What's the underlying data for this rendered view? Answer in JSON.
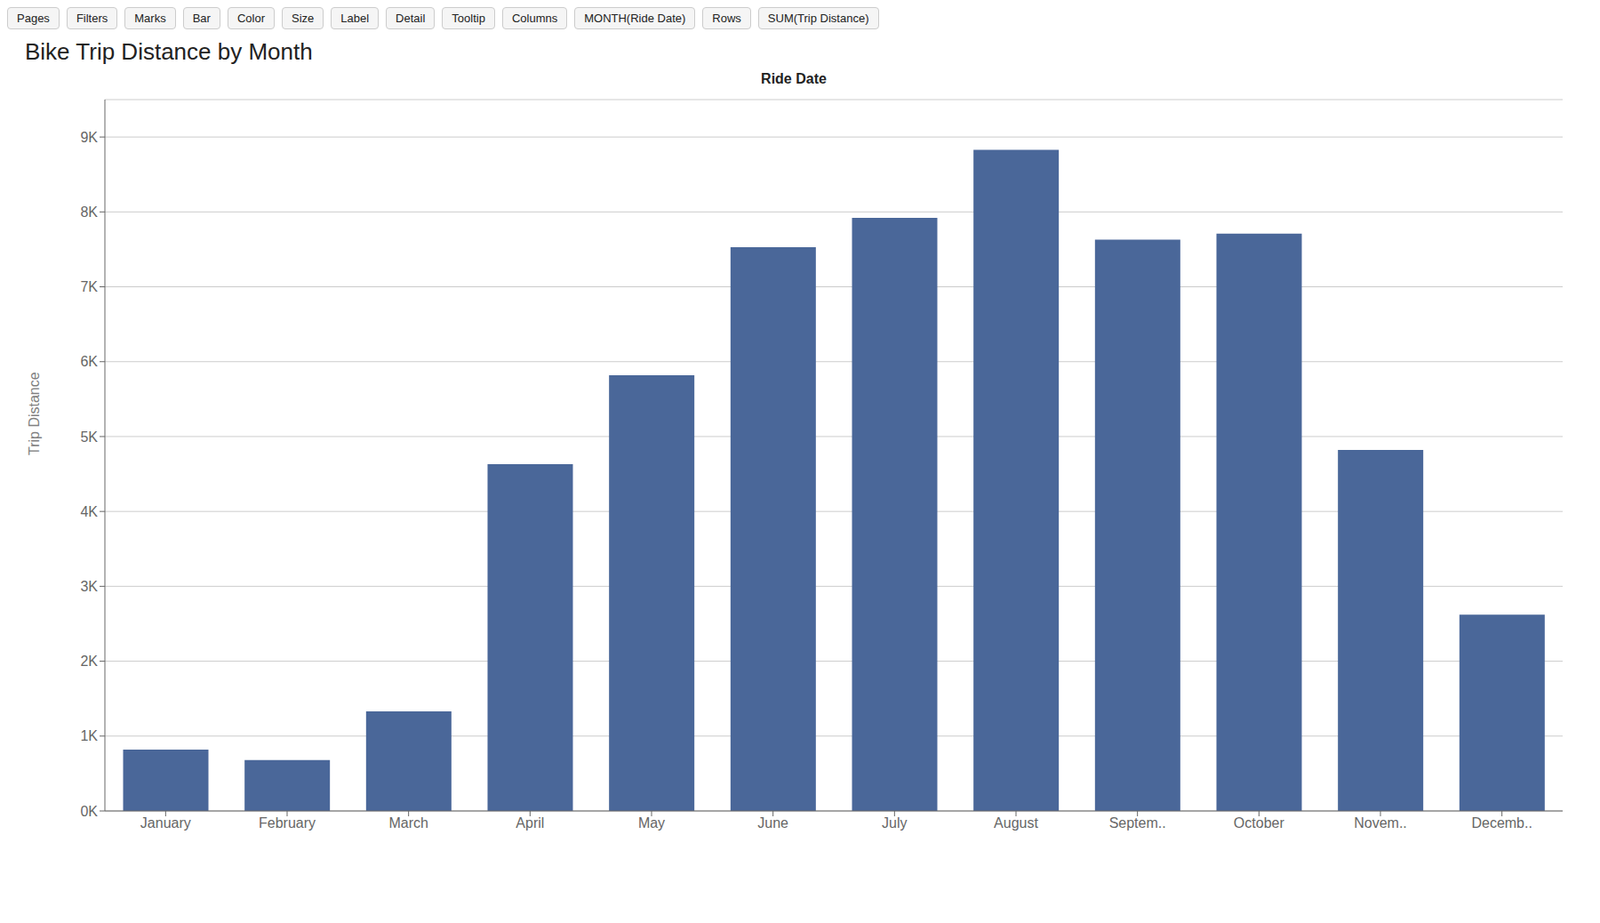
{
  "chart_data": {
    "type": "bar",
    "title": "Bike Trip Distance by Month",
    "xlabel": "Ride Date",
    "ylabel": "Trip Distance",
    "categories": [
      "January",
      "February",
      "March",
      "April",
      "May",
      "June",
      "July",
      "August",
      "Septem..",
      "October",
      "Novem..",
      "Decemb.."
    ],
    "values": [
      820,
      680,
      1330,
      4630,
      5820,
      7530,
      7920,
      8830,
      7630,
      7710,
      4820,
      2620
    ],
    "color": "#4a6799",
    "ylim": [
      0,
      9500
    ],
    "yticks": [
      {
        "value": 0,
        "label": "0K"
      },
      {
        "value": 1000,
        "label": "1K"
      },
      {
        "value": 2000,
        "label": "2K"
      },
      {
        "value": 3000,
        "label": "3K"
      },
      {
        "value": 4000,
        "label": "4K"
      },
      {
        "value": 5000,
        "label": "5K"
      },
      {
        "value": 6000,
        "label": "6K"
      },
      {
        "value": 7000,
        "label": "7K"
      },
      {
        "value": 8000,
        "label": "8K"
      },
      {
        "value": 9000,
        "label": "9K"
      }
    ],
    "grid": true,
    "annotations": [
      "Pages",
      "Filters",
      "Marks",
      "Bar",
      "Color",
      "Size",
      "Label",
      "Detail",
      "Tooltip",
      "Columns",
      "MONTH(Ride Date)",
      "Rows",
      "SUM(Trip Distance)"
    ]
  }
}
